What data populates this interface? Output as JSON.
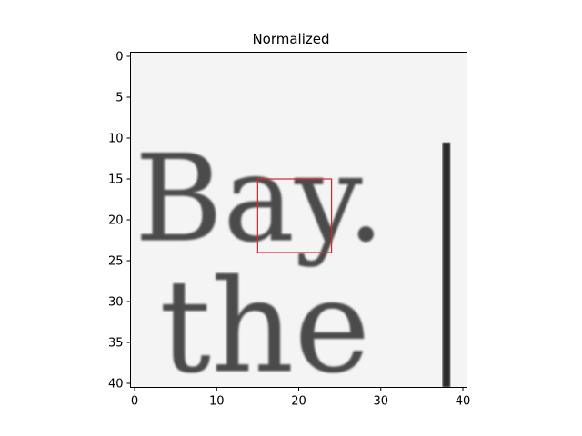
{
  "chart_data": {
    "type": "heatmap",
    "title": "Normalized",
    "xlabel": "",
    "ylabel": "",
    "colormap": "gray",
    "image_size": [
      41,
      41
    ],
    "xlim": [
      -0.5,
      40.5
    ],
    "ylim": [
      40.5,
      -0.5
    ],
    "xticks": [
      0,
      10,
      20,
      30,
      40
    ],
    "yticks": [
      0,
      5,
      10,
      15,
      20,
      25,
      30,
      35,
      40
    ],
    "grid": false,
    "highlight_box": {
      "x0": 15,
      "y0": 15,
      "x1": 24,
      "y1": 24,
      "color": "#d62728"
    },
    "glyphs": [
      {
        "text": "Bay.",
        "col": 0,
        "row": 22.5,
        "height": 14
      },
      {
        "text": "the",
        "col": 3,
        "row": 38.5,
        "height": 15
      }
    ],
    "vertical_bar": {
      "col": 38,
      "row_start": 10.5,
      "row_end": 40.5
    }
  }
}
